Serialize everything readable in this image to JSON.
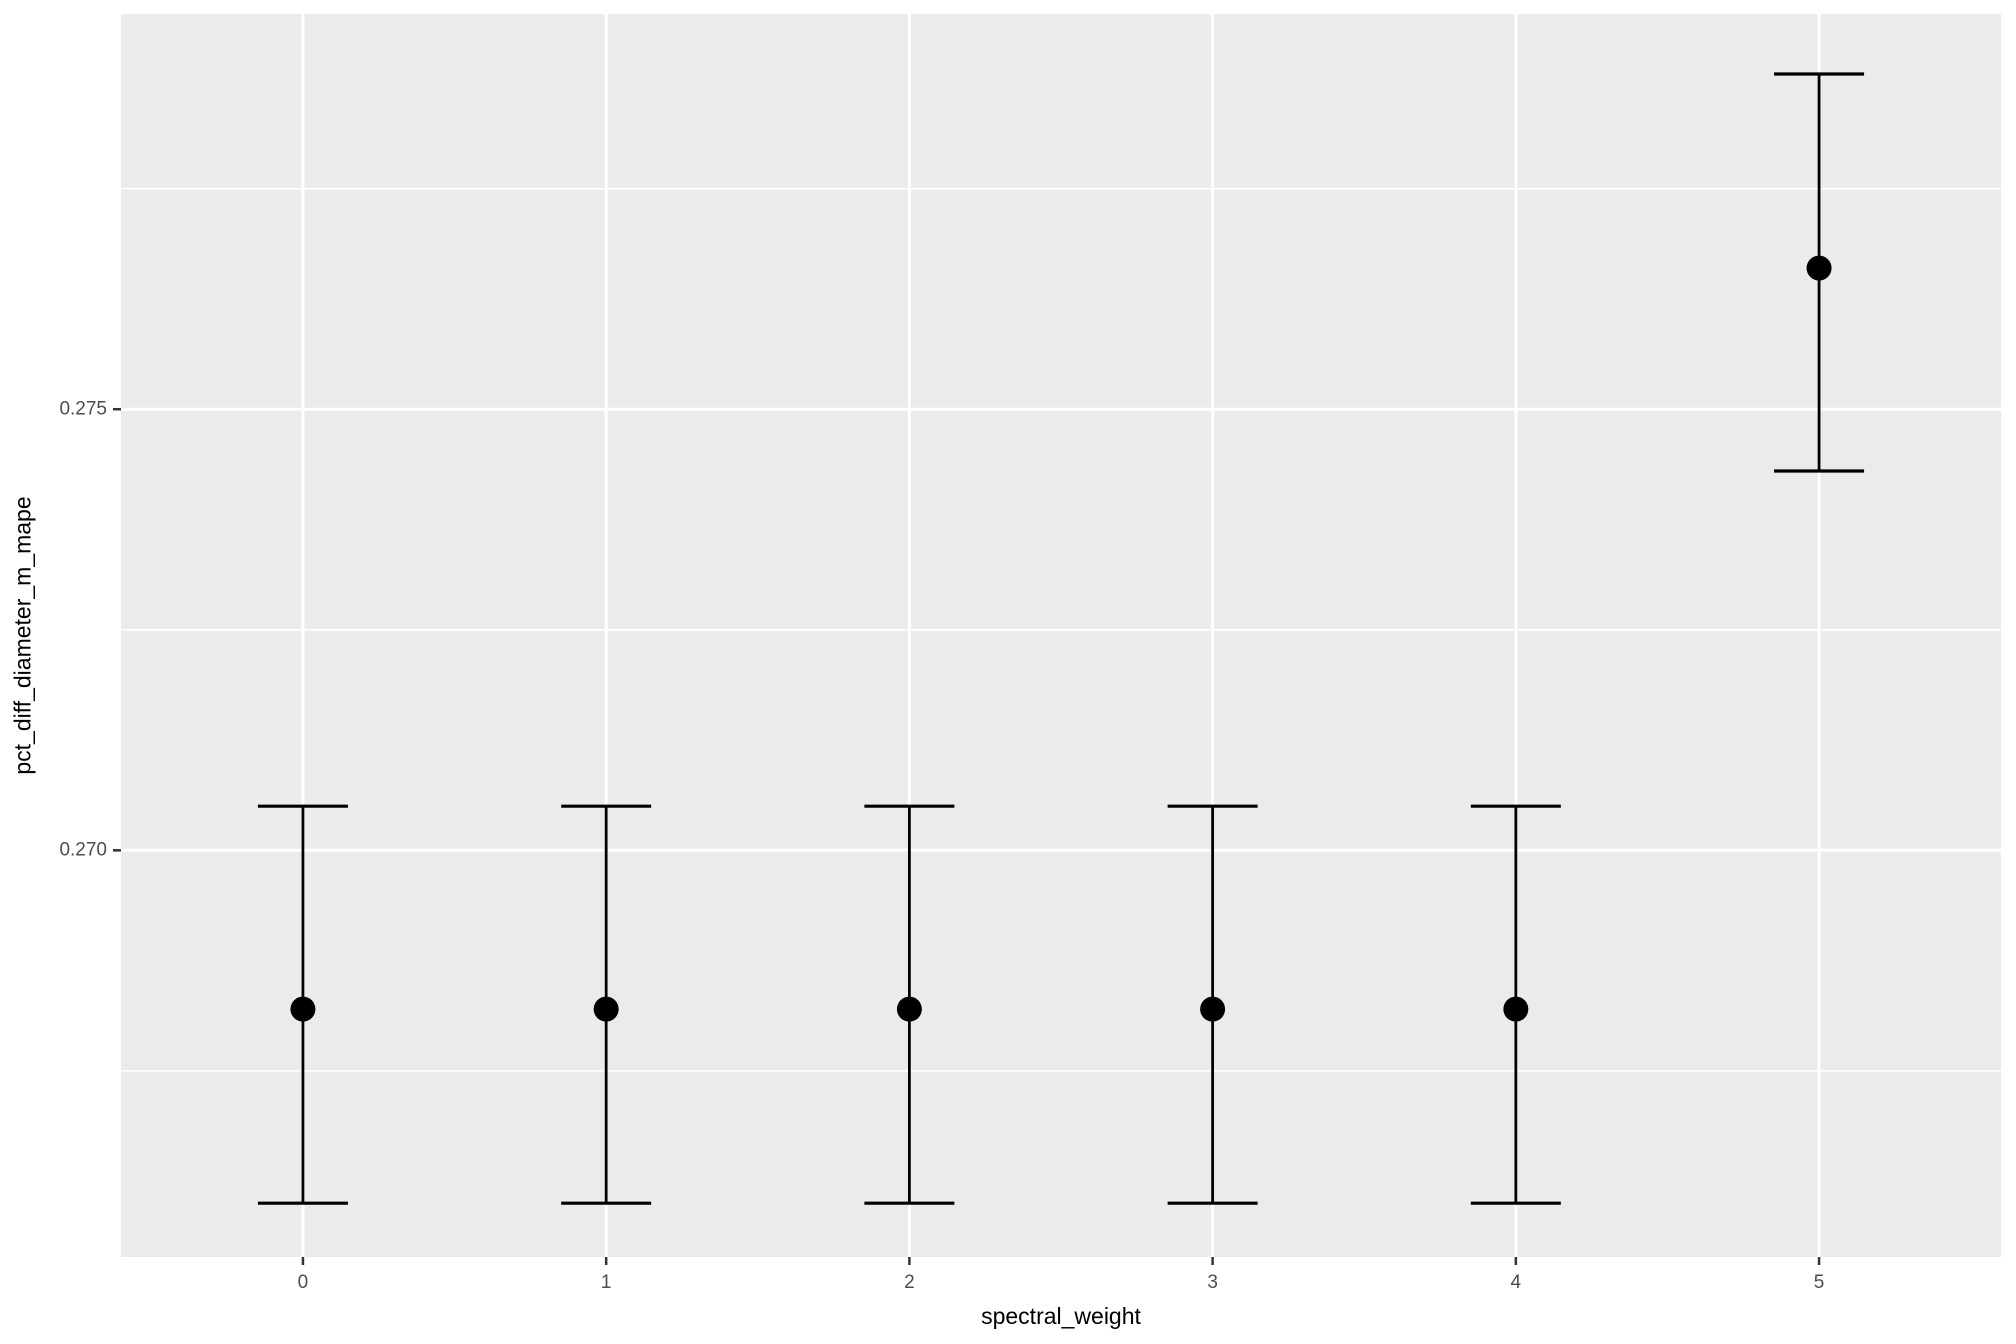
{
  "chart_data": {
    "type": "scatter",
    "subtype": "pointrange-errorbar",
    "title": "",
    "xlabel": "spectral_weight",
    "ylabel": "pct_diff_diameter_m_mape",
    "series": [
      {
        "name": "pct_diff_diameter_m_mape vs spectral_weight",
        "points": [
          {
            "x": 0,
            "y": 0.2682,
            "ymin": 0.266,
            "ymax": 0.2705
          },
          {
            "x": 1,
            "y": 0.2682,
            "ymin": 0.266,
            "ymax": 0.2705
          },
          {
            "x": 2,
            "y": 0.2682,
            "ymin": 0.266,
            "ymax": 0.2705
          },
          {
            "x": 3,
            "y": 0.2682,
            "ymin": 0.266,
            "ymax": 0.2705
          },
          {
            "x": 4,
            "y": 0.2682,
            "ymin": 0.266,
            "ymax": 0.2705
          },
          {
            "x": 5,
            "y": 0.2766,
            "ymin": 0.2743,
            "ymax": 0.2788
          }
        ]
      }
    ],
    "x_ticks": [
      {
        "value": 0,
        "label": "0"
      },
      {
        "value": 1,
        "label": "1"
      },
      {
        "value": 2,
        "label": "2"
      },
      {
        "value": 3,
        "label": "3"
      },
      {
        "value": 4,
        "label": "4"
      },
      {
        "value": 5,
        "label": "5"
      }
    ],
    "y_ticks": [
      {
        "value": 0.27,
        "label": "0.270"
      },
      {
        "value": 0.275,
        "label": "0.275"
      }
    ],
    "y_minor_gridlines": [
      0.2675,
      0.2725,
      0.2775
    ],
    "xlim": [
      -0.6,
      5.6
    ],
    "ylim": [
      0.26539,
      0.27948
    ],
    "grid": true,
    "legend_position": "none",
    "colors": {
      "panel_background": "#EBEBEB",
      "gridline": "#FFFFFF",
      "point": "#000000",
      "errorbar": "#000000",
      "tick_mark": "#333333",
      "tick_label": "#4D4D4D",
      "axis_title": "#000000",
      "figure_background": "#FFFFFF"
    }
  }
}
